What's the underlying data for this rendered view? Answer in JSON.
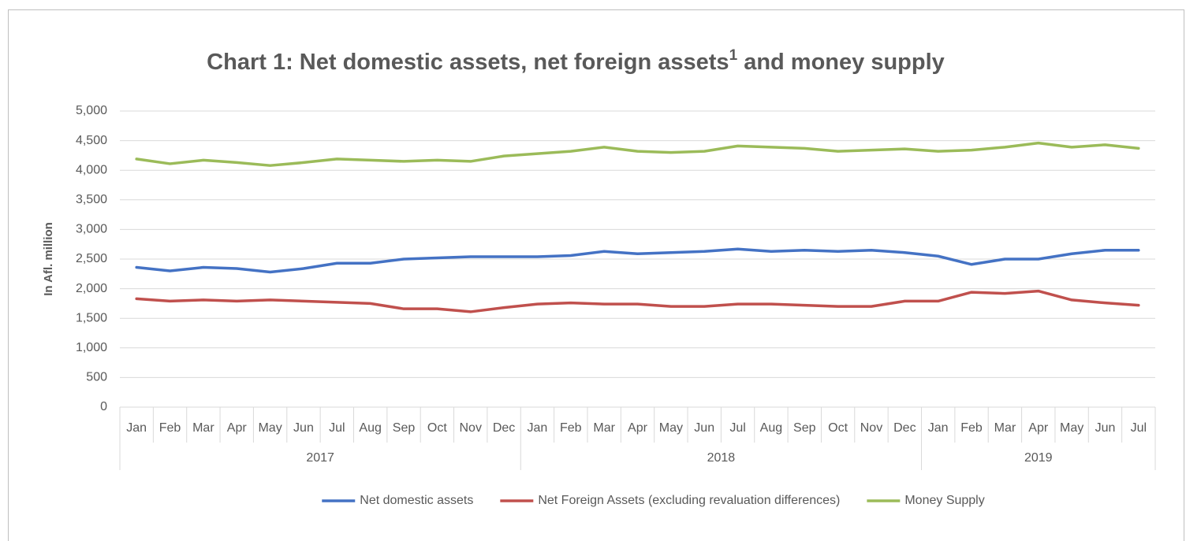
{
  "chart_data": {
    "type": "line",
    "title": "Chart 1: Net domestic assets, net foreign assets",
    "title_superscript": "1",
    "title_end": " and money supply",
    "y_label": "In Afl. million",
    "categories": [
      "Jan",
      "Feb",
      "Mar",
      "Apr",
      "May",
      "Jun",
      "Jul",
      "Aug",
      "Sep",
      "Oct",
      "Nov",
      "Dec",
      "Jan",
      "Feb",
      "Mar",
      "Apr",
      "May",
      "Jun",
      "Jul",
      "Aug",
      "Sep",
      "Oct",
      "Nov",
      "Dec",
      "Jan",
      "Feb",
      "Mar",
      "Apr",
      "May",
      "Jun",
      "Jul"
    ],
    "category_groups": [
      {
        "label": "2017",
        "count": 12
      },
      {
        "label": "2018",
        "count": 12
      },
      {
        "label": "2019",
        "count": 7
      }
    ],
    "series": [
      {
        "name": "Net domestic assets",
        "color": "#4472c4",
        "values": [
          2360,
          2300,
          2360,
          2340,
          2280,
          2340,
          2430,
          2430,
          2500,
          2520,
          2540,
          2540,
          2540,
          2560,
          2630,
          2590,
          2610,
          2630,
          2670,
          2630,
          2650,
          2630,
          2650,
          2610,
          2550,
          2410,
          2500,
          2500,
          2590,
          2650,
          2650
        ]
      },
      {
        "name": "Net Foreign Assets (excluding revaluation differences)",
        "color": "#c0504d",
        "values": [
          1830,
          1790,
          1810,
          1790,
          1810,
          1790,
          1770,
          1750,
          1660,
          1660,
          1610,
          1680,
          1740,
          1760,
          1740,
          1740,
          1700,
          1700,
          1740,
          1740,
          1720,
          1700,
          1700,
          1790,
          1790,
          1940,
          1920,
          1960,
          1810,
          1760,
          1720
        ]
      },
      {
        "name": "Money Supply",
        "color": "#9bbb59",
        "values": [
          4190,
          4110,
          4170,
          4130,
          4080,
          4130,
          4190,
          4170,
          4150,
          4170,
          4150,
          4240,
          4280,
          4320,
          4390,
          4320,
          4300,
          4320,
          4410,
          4390,
          4370,
          4320,
          4340,
          4360,
          4320,
          4340,
          4390,
          4460,
          4390,
          4430,
          4370
        ]
      }
    ],
    "ylim": [
      0,
      5000
    ],
    "yticks": [
      0,
      500,
      {
        "value": 1000,
        "label": "1,000"
      },
      {
        "value": 1500,
        "label": "1,500"
      },
      {
        "value": 2000,
        "label": "2,000"
      },
      {
        "value": 2500,
        "label": "2,500"
      },
      {
        "value": 3000,
        "label": "3,000"
      },
      {
        "value": 3500,
        "label": "3,500"
      },
      {
        "value": 4000,
        "label": "4,000"
      },
      {
        "value": 4500,
        "label": "4,500"
      },
      {
        "value": 5000,
        "label": "5,000"
      }
    ],
    "grid": true,
    "legend": "bottom"
  }
}
